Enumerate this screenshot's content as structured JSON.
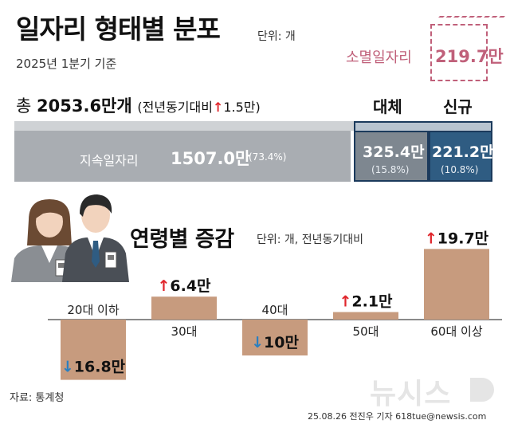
{
  "header": {
    "title": "일자리 형태별 분포",
    "unit": "단위: 개",
    "basis": "2025년 1분기 기준"
  },
  "lost_jobs": {
    "label": "소멸일자리",
    "value": "219.7만"
  },
  "total": {
    "prefix": "총",
    "value": "2053.6만개",
    "yoy_label": "(전년동기대비",
    "yoy_arrow": "↑",
    "yoy_value": "1.5만)"
  },
  "distribution": {
    "continuing": {
      "label": "지속일자리",
      "value": "1507.0만",
      "pct": "(73.4%)"
    },
    "replacement": {
      "head": "대체",
      "value": "325.4만",
      "pct": "(15.8%)"
    },
    "new": {
      "head": "신규",
      "value": "221.2만",
      "pct": "(10.8%)"
    }
  },
  "age_section": {
    "title": "연령별 증감",
    "unit": "단위: 개, 전년동기대비"
  },
  "colors": {
    "bar": "#c79b7e",
    "up": "#e0262c",
    "down": "#2a7fc0",
    "accent": "#c0607a"
  },
  "chart_data": {
    "type": "bar",
    "title": "연령별 증감",
    "categories": [
      "20대 이하",
      "30대",
      "40대",
      "50대",
      "60대 이상"
    ],
    "values": [
      -16.8,
      6.4,
      -10,
      2.1,
      19.7
    ],
    "value_labels": [
      "16.8만",
      "6.4만",
      "10만",
      "2.1만",
      "19.7만"
    ]
  },
  "footer": {
    "source": "자료: 통계청",
    "credit": "25.08.26 전진우 기자 618tue@newsis.com",
    "logo": "뉴시스"
  }
}
